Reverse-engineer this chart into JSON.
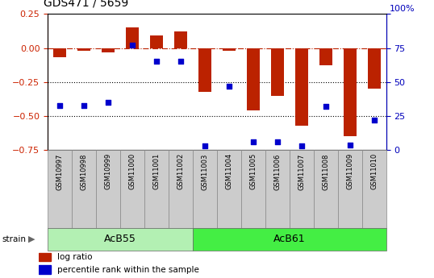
{
  "title": "GDS471 / 5659",
  "samples": [
    "GSM10997",
    "GSM10998",
    "GSM10999",
    "GSM11000",
    "GSM11001",
    "GSM11002",
    "GSM11003",
    "GSM11004",
    "GSM11005",
    "GSM11006",
    "GSM11007",
    "GSM11008",
    "GSM11009",
    "GSM11010"
  ],
  "log_ratio": [
    -0.07,
    -0.02,
    -0.03,
    0.15,
    0.09,
    0.12,
    -0.32,
    -0.02,
    -0.46,
    -0.35,
    -0.57,
    -0.13,
    -0.65,
    -0.3
  ],
  "percentile_rank": [
    33,
    33,
    35,
    77,
    65,
    65,
    3,
    47,
    6,
    6,
    3,
    32,
    4,
    22
  ],
  "strain_groups": [
    {
      "label": "AcB55",
      "start": 0,
      "end": 6,
      "color": "#b3f0b3"
    },
    {
      "label": "AcB61",
      "start": 6,
      "end": 14,
      "color": "#44ee44"
    }
  ],
  "bar_color": "#BB2200",
  "marker_color": "#0000CC",
  "ylim_left": [
    -0.75,
    0.25
  ],
  "ylim_right": [
    0,
    100
  ],
  "yticks_left": [
    -0.75,
    -0.5,
    -0.25,
    0,
    0.25
  ],
  "yticks_right": [
    0,
    25,
    50,
    75,
    100
  ],
  "dotted_lines": [
    -0.25,
    -0.5
  ],
  "bar_width": 0.55,
  "label_color_left": "#CC2200",
  "label_color_right": "#0000BB"
}
